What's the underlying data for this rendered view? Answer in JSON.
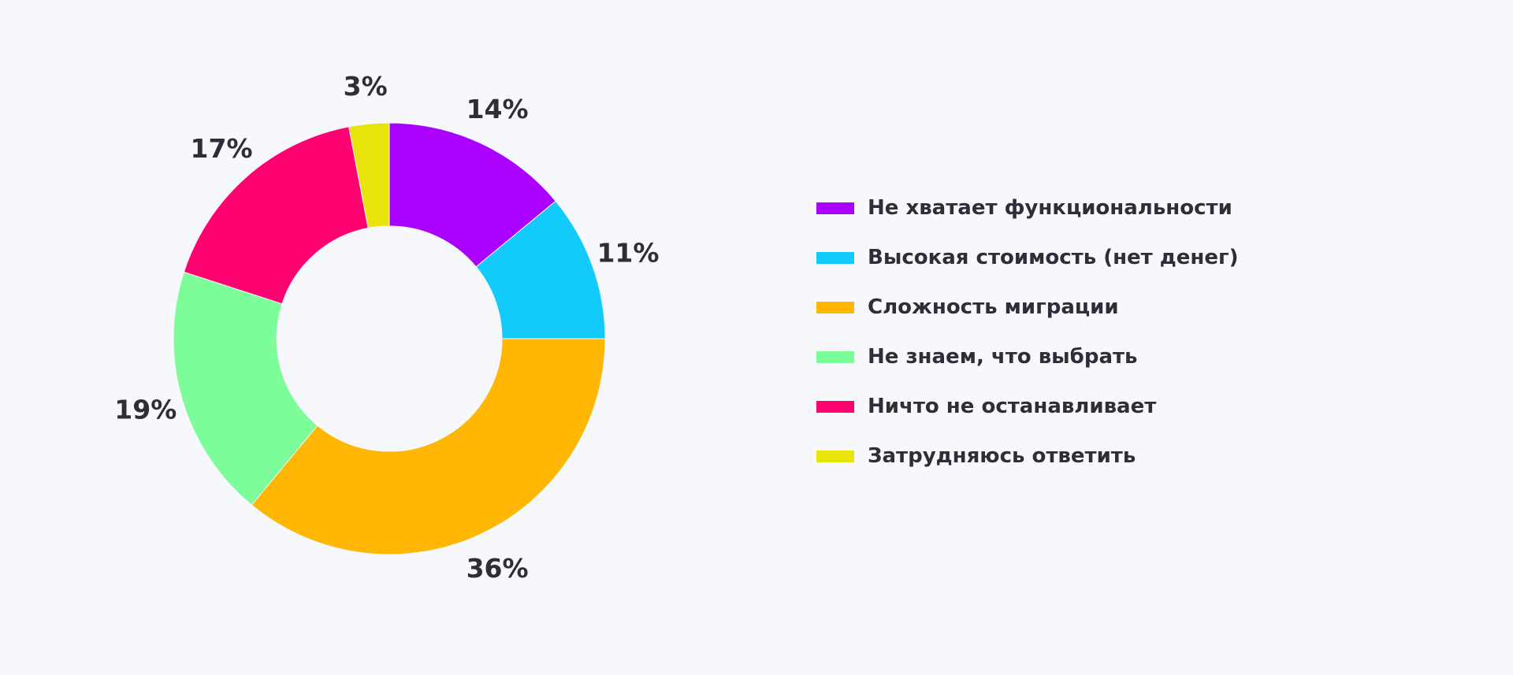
{
  "chart_data": {
    "type": "pie",
    "variant": "donut",
    "slices": [
      {
        "label": "Не хватает функциональности",
        "value": 14,
        "display": "14%",
        "color": "#aa00ff"
      },
      {
        "label": "Высокая стоимость (нет денег)",
        "value": 11,
        "display": "11%",
        "color": "#12cbfa"
      },
      {
        "label": "Сложность миграции",
        "value": 36,
        "display": "36%",
        "color": "#ffb703"
      },
      {
        "label": "Не знаем, что выбрать",
        "value": 19,
        "display": "19%",
        "color": "#7dfc9a"
      },
      {
        "label": "Ничто не останавливает",
        "value": 17,
        "display": "17%",
        "color": "#ff0171"
      },
      {
        "label": "Затрудняюсь ответить",
        "value": 3,
        "display": "3%",
        "color": "#e8e40a"
      }
    ],
    "start": "12 o'clock",
    "direction": "clockwise",
    "legend_position": "right"
  },
  "colors": {
    "background": "#f7f8fb",
    "text": "#2e2e38"
  }
}
